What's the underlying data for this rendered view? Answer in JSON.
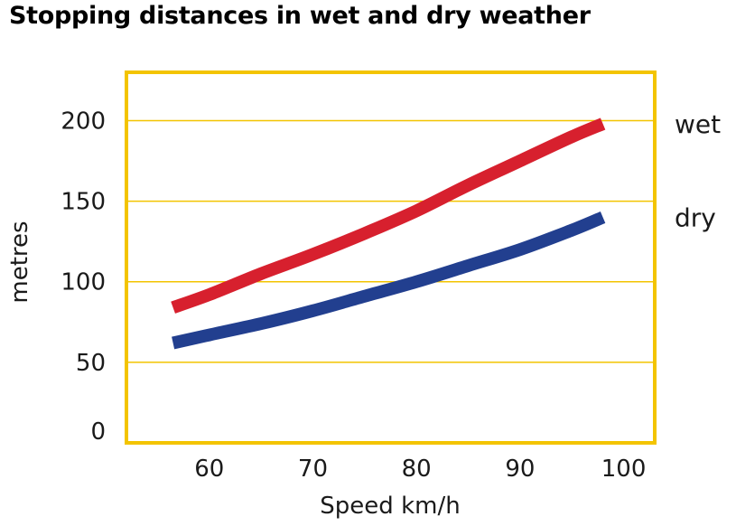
{
  "chart_data": {
    "type": "line",
    "title": "Stopping distances in wet and dry weather",
    "xlabel": "Speed km/h",
    "ylabel": "metres",
    "xlim": [
      52,
      103
    ],
    "ylim": [
      0,
      230
    ],
    "xticks": [
      60,
      70,
      80,
      90,
      100
    ],
    "yticks": [
      0,
      50,
      100,
      150,
      200
    ],
    "grid": "horizontal",
    "legend_position": "right, at line ends",
    "series": [
      {
        "name": "wet",
        "color": "#d7202e",
        "x": [
          56.5,
          60,
          65,
          70,
          75,
          80,
          85,
          90,
          95,
          98
        ],
        "y": [
          84,
          92,
          105,
          117,
          130,
          144,
          160,
          175,
          190,
          198
        ]
      },
      {
        "name": "dry",
        "color": "#223f8f",
        "x": [
          56.5,
          60,
          65,
          70,
          75,
          80,
          85,
          90,
          95,
          98
        ],
        "y": [
          62,
          67,
          74,
          82,
          91,
          100,
          110,
          120,
          132,
          140
        ]
      }
    ],
    "frame_color": "#f3c400",
    "grid_color": "#f3c400"
  }
}
